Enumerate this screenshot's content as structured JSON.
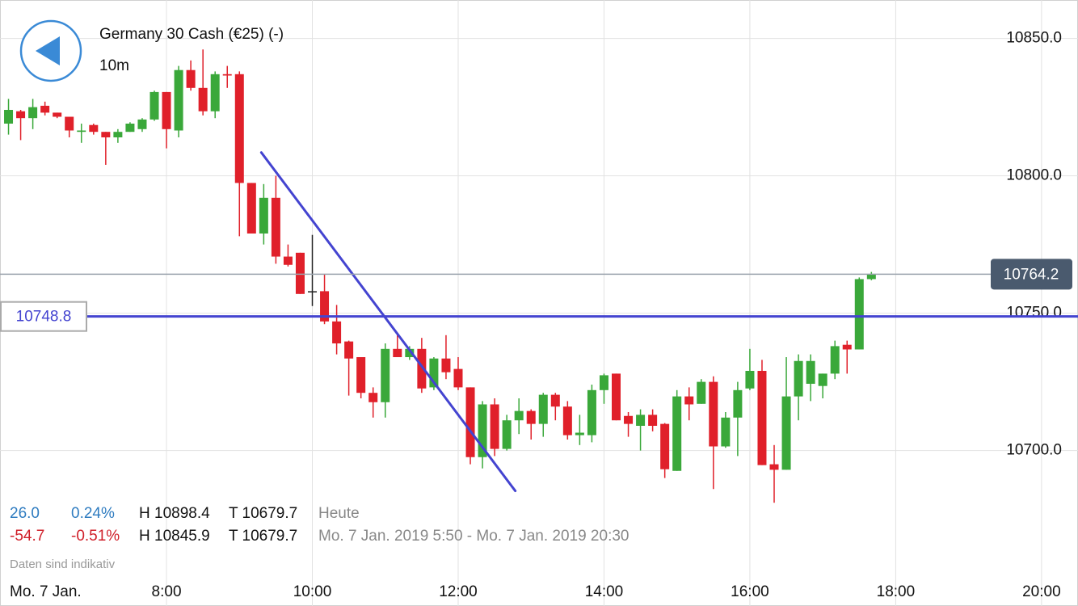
{
  "chart_data": {
    "type": "candlestick",
    "title": "Germany 30 Cash (€25) (-)",
    "subtitle": "10m",
    "date_label": "Mo. 7 Jan.",
    "x": [
      350,
      360,
      370,
      380,
      390,
      400,
      410,
      420,
      430,
      440,
      450,
      460,
      470,
      480,
      490,
      500,
      510,
      520,
      530,
      540,
      550,
      560,
      570,
      580,
      590,
      600,
      610,
      620,
      630,
      640,
      650,
      660,
      670,
      680,
      690,
      700,
      710,
      720,
      730,
      740,
      750,
      760,
      770,
      780,
      790,
      800,
      810,
      820,
      830,
      840,
      850,
      860,
      870,
      880,
      890,
      900,
      910,
      920,
      930,
      940,
      950,
      960,
      970,
      980,
      990,
      1000,
      1010,
      1020,
      1030,
      1040,
      1050,
      1060
    ],
    "open": [
      10819,
      10823.5,
      10821,
      10825.5,
      10823,
      10821.5,
      10816,
      10818.5,
      10816,
      10814,
      10816,
      10817,
      10820.5,
      10830.5,
      10816.5,
      10838.5,
      10832,
      10823.5,
      10837,
      10837,
      10797.4,
      10779,
      10792,
      10770.6,
      10772,
      10758,
      10758,
      10747,
      10739.7,
      10734,
      10721,
      10717.6,
      10737,
      10734,
      10737,
      10723,
      10733.5,
      10729.7,
      10723,
      10697.6,
      10716.8,
      10700.6,
      10711,
      10714.4,
      10709.7,
      10720.3,
      10716,
      10705.6,
      10705.6,
      10722,
      10728,
      10712.6,
      10709,
      10713,
      10709.7,
      10692.6,
      10719.7,
      10717,
      10725,
      10701.5,
      10712,
      10722.6,
      10729,
      10695,
      10693,
      10719.7,
      10724.3,
      10723.5,
      10728,
      10738.5,
      10736.8,
      10762.4
    ],
    "high": [
      10828,
      10824,
      10828,
      10827,
      10823,
      10821.5,
      10819,
      10819,
      10816,
      10817,
      10819.5,
      10821,
      10831,
      10830.5,
      10840,
      10842,
      10846,
      10838,
      10840,
      10838,
      10797.4,
      10797,
      10800,
      10775,
      10772,
      10778.5,
      10764,
      10753,
      10740,
      10734,
      10723,
      10739,
      10742,
      10738,
      10741,
      10734,
      10742,
      10734,
      10723,
      10718,
      10719,
      10713,
      10719,
      10715,
      10721,
      10721,
      10718,
      10713,
      10724,
      10728,
      10728,
      10714,
      10715,
      10715,
      10710,
      10722,
      10723,
      10726,
      10727,
      10714,
      10725,
      10737,
      10733,
      10702,
      10734,
      10735,
      10735,
      10728,
      10740,
      10740,
      10763,
      10765
    ],
    "low": [
      10815,
      10813,
      10817,
      10822,
      10821,
      10814,
      10812,
      10815,
      10804,
      10812,
      10816,
      10816,
      10820,
      10810,
      10814,
      10831,
      10822,
      10821,
      10832,
      10778,
      10779,
      10775,
      10768,
      10767,
      10757,
      10752.6,
      10746,
      10735,
      10720,
      10719,
      10712,
      10712,
      10734,
      10733,
      10721,
      10722,
      10726,
      10722,
      10695,
      10693.5,
      10698,
      10700,
      10706,
      10704,
      10705,
      10711,
      10704,
      10702,
      10703,
      10717,
      10711,
      10705,
      10700,
      10707,
      10690,
      10692.6,
      10711,
      10717,
      10686,
      10701,
      10698,
      10722,
      10694.7,
      10681,
      10693,
      10711,
      10718,
      10719,
      10726,
      10728,
      10736.8,
      10762
    ],
    "close": [
      10824,
      10821,
      10825,
      10823,
      10821.5,
      10816.5,
      10816.5,
      10816,
      10814,
      10816,
      10819,
      10820.5,
      10830.5,
      10817,
      10838.5,
      10832,
      10823.5,
      10837,
      10836.5,
      10797.4,
      10779,
      10792,
      10770.6,
      10767.6,
      10757,
      10758,
      10747,
      10739,
      10733.5,
      10721,
      10717.6,
      10737,
      10734,
      10737,
      10722.6,
      10733.5,
      10728.5,
      10723,
      10697.6,
      10716.8,
      10700.6,
      10711,
      10714.4,
      10709.7,
      10720.3,
      10716,
      10705.6,
      10706.5,
      10722,
      10727.4,
      10711,
      10709.7,
      10713,
      10709,
      10693.2,
      10719.7,
      10716.8,
      10725,
      10701.5,
      10712,
      10722,
      10729,
      10694.7,
      10693,
      10719.7,
      10732.6,
      10732.6,
      10728,
      10738,
      10736.8,
      10762.4,
      10764.2
    ],
    "up_color": "#3aa83a",
    "down_color": "#e0202a",
    "flat_color": "#222222",
    "xlim": [
      343,
      1230
    ],
    "ylim": [
      10654,
      10864
    ],
    "xticks": [
      {
        "value": 480,
        "label": "8:00"
      },
      {
        "value": 600,
        "label": "10:00"
      },
      {
        "value": 720,
        "label": "12:00"
      },
      {
        "value": 840,
        "label": "14:00"
      },
      {
        "value": 960,
        "label": "16:00"
      },
      {
        "value": 1080,
        "label": "18:00"
      },
      {
        "value": 1200,
        "label": "20:00"
      }
    ],
    "yticks": [
      {
        "value": 10850,
        "label": "10850.0"
      },
      {
        "value": 10800,
        "label": "10800.0"
      },
      {
        "value": 10750,
        "label": "10750.0"
      },
      {
        "value": 10700,
        "label": "10700.0"
      }
    ],
    "grid": true,
    "price_line": 10764.2,
    "level_line": 10748.8,
    "trend_line": {
      "x": [
        558,
        767
      ],
      "y": [
        10808.5,
        10685.3
      ],
      "color": "#4444d0"
    },
    "stats": {
      "today": {
        "change": "26.0",
        "percent": "0.24%",
        "high": "H 10898.4",
        "low": "T 10679.7",
        "period": "Heute"
      },
      "range": {
        "change": "-54.7",
        "percent": "-0.51%",
        "high": "H 10845.9",
        "low": "T 10679.7",
        "period": "Mo. 7 Jan. 2019 5:50 - Mo. 7 Jan. 2019 20:30"
      }
    },
    "note": "Daten sind indikativ"
  }
}
